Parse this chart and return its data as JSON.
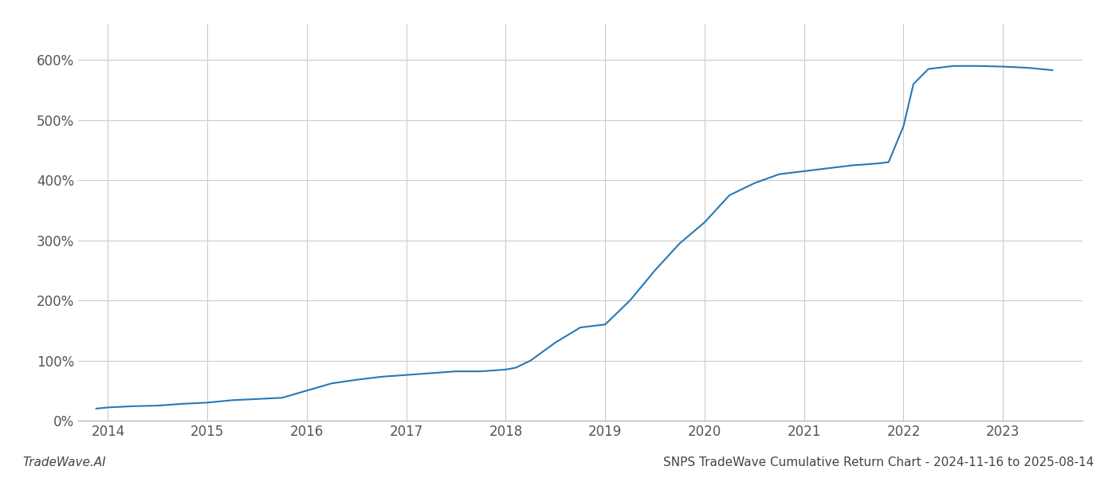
{
  "title": "SNPS TradeWave Cumulative Return Chart - 2024-11-16 to 2025-08-14",
  "watermark": "TradeWave.AI",
  "line_color": "#2878b5",
  "line_width": 1.5,
  "background_color": "#ffffff",
  "grid_color": "#cccccc",
  "x_years": [
    2014,
    2015,
    2016,
    2017,
    2018,
    2019,
    2020,
    2021,
    2022,
    2023
  ],
  "x_data": [
    2013.88,
    2014.0,
    2014.25,
    2014.5,
    2014.75,
    2015.0,
    2015.25,
    2015.5,
    2015.75,
    2016.0,
    2016.25,
    2016.5,
    2016.75,
    2017.0,
    2017.25,
    2017.5,
    2017.75,
    2018.0,
    2018.1,
    2018.25,
    2018.5,
    2018.75,
    2019.0,
    2019.25,
    2019.5,
    2019.75,
    2020.0,
    2020.25,
    2020.5,
    2020.75,
    2021.0,
    2021.25,
    2021.5,
    2021.6,
    2021.75,
    2021.85,
    2022.0,
    2022.1,
    2022.25,
    2022.5,
    2022.75,
    2023.0,
    2023.25,
    2023.5
  ],
  "y_data": [
    20,
    22,
    24,
    25,
    28,
    30,
    34,
    36,
    38,
    50,
    62,
    68,
    73,
    76,
    79,
    82,
    82,
    85,
    88,
    100,
    130,
    155,
    160,
    200,
    250,
    295,
    330,
    375,
    395,
    410,
    415,
    420,
    425,
    426,
    428,
    430,
    490,
    560,
    585,
    590,
    590,
    589,
    587,
    583
  ],
  "ylim": [
    0,
    660
  ],
  "yticks": [
    0,
    100,
    200,
    300,
    400,
    500,
    600
  ],
  "xlim": [
    2013.7,
    2023.8
  ],
  "title_fontsize": 11,
  "watermark_fontsize": 11,
  "tick_fontsize": 12
}
